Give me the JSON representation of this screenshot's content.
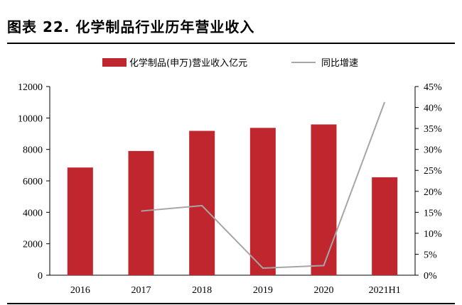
{
  "title": "图表 22. 化学制品行业历年营业收入",
  "colors": {
    "bar": "#C0262D",
    "line": "#A6A6A6",
    "axis": "#000000"
  },
  "chart_data": {
    "type": "bar",
    "categories": [
      "2016",
      "2017",
      "2018",
      "2019",
      "2020",
      "2021H1"
    ],
    "series": [
      {
        "name": "化学制品(申万)营业收入亿元",
        "type": "bar",
        "axis": "left",
        "values": [
          6850,
          7900,
          9180,
          9370,
          9590,
          6230
        ]
      },
      {
        "name": "同比增速",
        "type": "line",
        "axis": "right",
        "values": [
          null,
          15.3,
          16.6,
          1.7,
          2.3,
          41.3
        ]
      }
    ],
    "y_left": {
      "min": 0,
      "max": 12000,
      "ticks": [
        "0",
        "2000",
        "4000",
        "6000",
        "8000",
        "10000",
        "12000"
      ]
    },
    "y_right": {
      "min": 0,
      "max": 45,
      "ticks": [
        "0%",
        "5%",
        "10%",
        "15%",
        "20%",
        "25%",
        "30%",
        "35%",
        "40%",
        "45%"
      ]
    },
    "legend": "top-center",
    "grid": false
  }
}
